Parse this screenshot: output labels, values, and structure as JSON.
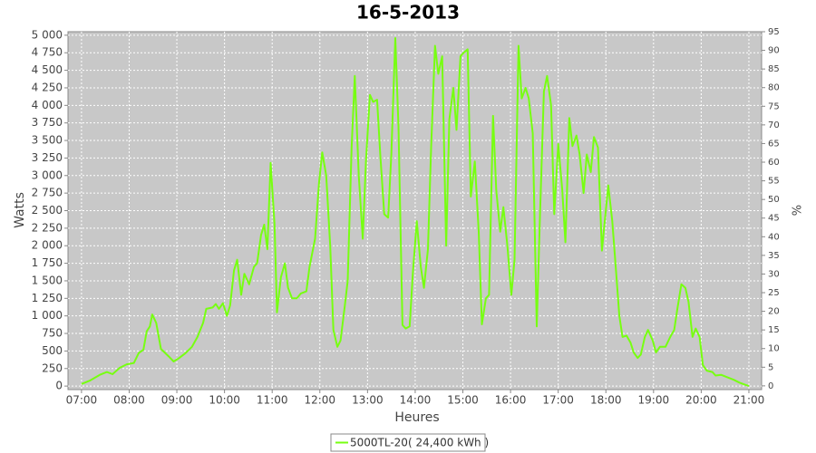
{
  "chart_data": {
    "type": "line",
    "title": "16-5-2013",
    "x_label": "Heures",
    "y_label": "Watts",
    "y2_label": "%",
    "xlim": [
      403,
      1276
    ],
    "xticks": [
      {
        "value": 420,
        "label": "07:00"
      },
      {
        "value": 480,
        "label": "08:00"
      },
      {
        "value": 540,
        "label": "09:00"
      },
      {
        "value": 600,
        "label": "10:00"
      },
      {
        "value": 660,
        "label": "11:00"
      },
      {
        "value": 720,
        "label": "12:00"
      },
      {
        "value": 780,
        "label": "13:00"
      },
      {
        "value": 840,
        "label": "14:00"
      },
      {
        "value": 900,
        "label": "15:00"
      },
      {
        "value": 960,
        "label": "16:00"
      },
      {
        "value": 1020,
        "label": "17:00"
      },
      {
        "value": 1080,
        "label": "18:00"
      },
      {
        "value": 1140,
        "label": "19:00"
      },
      {
        "value": 1200,
        "label": "20:00"
      },
      {
        "value": 1260,
        "label": "21:00"
      }
    ],
    "ylim": [
      -50,
      5050
    ],
    "yticks": [
      0,
      250,
      500,
      750,
      {
        "value": 1000,
        "label": "1 000"
      },
      {
        "value": 1250,
        "label": "1 250"
      },
      {
        "value": 1500,
        "label": "1 500"
      },
      {
        "value": 1750,
        "label": "1 750"
      },
      {
        "value": 2000,
        "label": "2 000"
      },
      {
        "value": 2250,
        "label": "2 250"
      },
      {
        "value": 2500,
        "label": "2 500"
      },
      {
        "value": 2750,
        "label": "2 750"
      },
      {
        "value": 3000,
        "label": "3 000"
      },
      {
        "value": 3250,
        "label": "3 250"
      },
      {
        "value": 3500,
        "label": "3 500"
      },
      {
        "value": 3750,
        "label": "3 750"
      },
      {
        "value": 4000,
        "label": "4 000"
      },
      {
        "value": 4250,
        "label": "4 250"
      },
      {
        "value": 4500,
        "label": "4 500"
      },
      {
        "value": 4750,
        "label": "4 750"
      },
      {
        "value": 5000,
        "label": "5 000"
      }
    ],
    "y2lim": [
      -1,
      95
    ],
    "y2ticks": [
      0,
      5,
      10,
      15,
      20,
      25,
      30,
      35,
      40,
      45,
      50,
      55,
      60,
      65,
      70,
      75,
      80,
      85,
      90,
      95
    ],
    "grid": true,
    "x": [
      420,
      431,
      443,
      452,
      459,
      468,
      477,
      486,
      492,
      498,
      502,
      506,
      509,
      514,
      520,
      530,
      536,
      543,
      551,
      559,
      566,
      573,
      577,
      585,
      589,
      593,
      598,
      603,
      607,
      612,
      616,
      621,
      625,
      631,
      637,
      641,
      646,
      650,
      654,
      658,
      663,
      666,
      671,
      676,
      680,
      685,
      691,
      696,
      703,
      707,
      714,
      719,
      723,
      728,
      733,
      737,
      742,
      746,
      751,
      755,
      760,
      764,
      769,
      774,
      778,
      783,
      787,
      792,
      796,
      801,
      806,
      810,
      815,
      819,
      824,
      828,
      833,
      837,
      842,
      847,
      851,
      856,
      860,
      865,
      869,
      874,
      879,
      883,
      888,
      892,
      897,
      901,
      906,
      910,
      915,
      920,
      924,
      929,
      933,
      938,
      942,
      947,
      951,
      956,
      961,
      965,
      970,
      974,
      979,
      983,
      988,
      993,
      997,
      1002,
      1006,
      1011,
      1015,
      1020,
      1025,
      1029,
      1034,
      1038,
      1043,
      1047,
      1052,
      1056,
      1061,
      1065,
      1070,
      1075,
      1079,
      1083,
      1088,
      1092,
      1097,
      1101,
      1106,
      1111,
      1115,
      1120,
      1124,
      1129,
      1133,
      1139,
      1143,
      1148,
      1155,
      1161,
      1166,
      1170,
      1175,
      1180,
      1184,
      1189,
      1193,
      1198,
      1202,
      1207,
      1214,
      1218,
      1225,
      1234,
      1241,
      1248,
      1255,
      1260
    ],
    "series": [
      {
        "name": "5000TL-20( 24,400 kWh )",
        "color": "#77ff11",
        "values": [
          30,
          80,
          160,
          200,
          170,
          260,
          310,
          330,
          470,
          520,
          780,
          850,
          1020,
          900,
          530,
          420,
          350,
          400,
          470,
          560,
          700,
          900,
          1100,
          1120,
          1170,
          1100,
          1180,
          1000,
          1150,
          1650,
          1800,
          1300,
          1600,
          1450,
          1700,
          1750,
          2150,
          2300,
          1950,
          3180,
          2300,
          1050,
          1550,
          1750,
          1400,
          1250,
          1250,
          1320,
          1350,
          1700,
          2100,
          2900,
          3330,
          3000,
          2000,
          800,
          560,
          650,
          1100,
          1500,
          3400,
          4420,
          3000,
          2100,
          3200,
          4150,
          4050,
          4080,
          3300,
          2450,
          2400,
          3300,
          4960,
          3700,
          870,
          820,
          850,
          1600,
          2350,
          1700,
          1400,
          1950,
          3400,
          4850,
          4450,
          4700,
          2000,
          3800,
          4250,
          3650,
          4700,
          4750,
          4800,
          2700,
          3200,
          2200,
          880,
          1250,
          1300,
          3850,
          2800,
          2200,
          2550,
          2000,
          1300,
          1800,
          4850,
          4100,
          4250,
          4100,
          3600,
          850,
          2400,
          4200,
          4420,
          4000,
          2450,
          3450,
          2800,
          2050,
          3820,
          3420,
          3570,
          3300,
          2750,
          3300,
          3050,
          3550,
          3400,
          1930,
          2400,
          2860,
          2350,
          1750,
          1000,
          700,
          720,
          620,
          480,
          400,
          450,
          700,
          800,
          650,
          480,
          560,
          560,
          700,
          800,
          1100,
          1450,
          1400,
          1200,
          700,
          820,
          700,
          300,
          220,
          200,
          150,
          160,
          120,
          90,
          50,
          20,
          0
        ]
      }
    ]
  }
}
